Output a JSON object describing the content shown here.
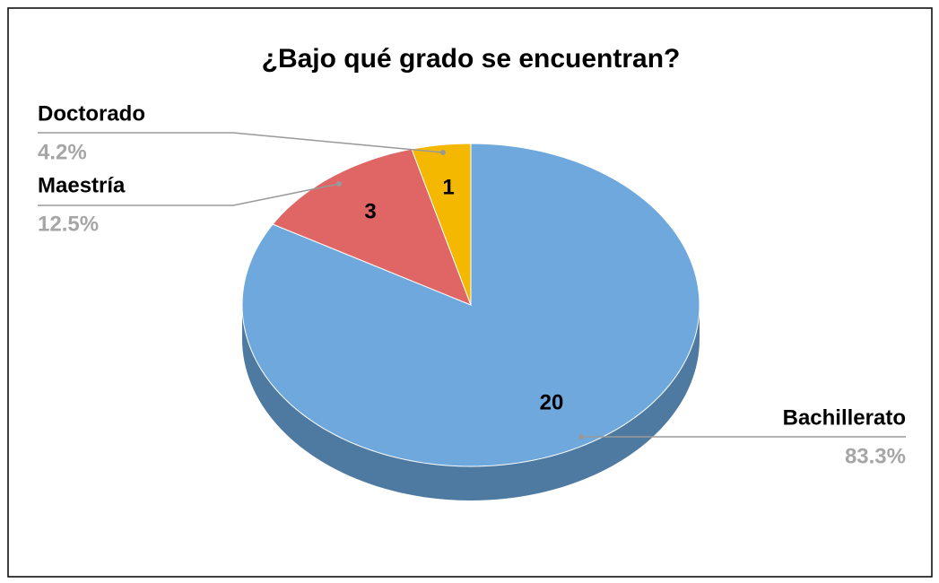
{
  "chart_data": {
    "type": "pie",
    "title": "¿Bajo qué grado se encuentran?",
    "categories": [
      "Bachillerato",
      "Maestría",
      "Doctorado"
    ],
    "values": [
      20,
      3,
      1
    ],
    "percent_labels": [
      "83.3%",
      "12.5%",
      "4.2%"
    ],
    "colors": [
      "#6fa8dc",
      "#e06666",
      "#f5b800"
    ],
    "side_colors": [
      "#4e7aa2",
      "#a84a4a",
      "#b88a00"
    ]
  }
}
